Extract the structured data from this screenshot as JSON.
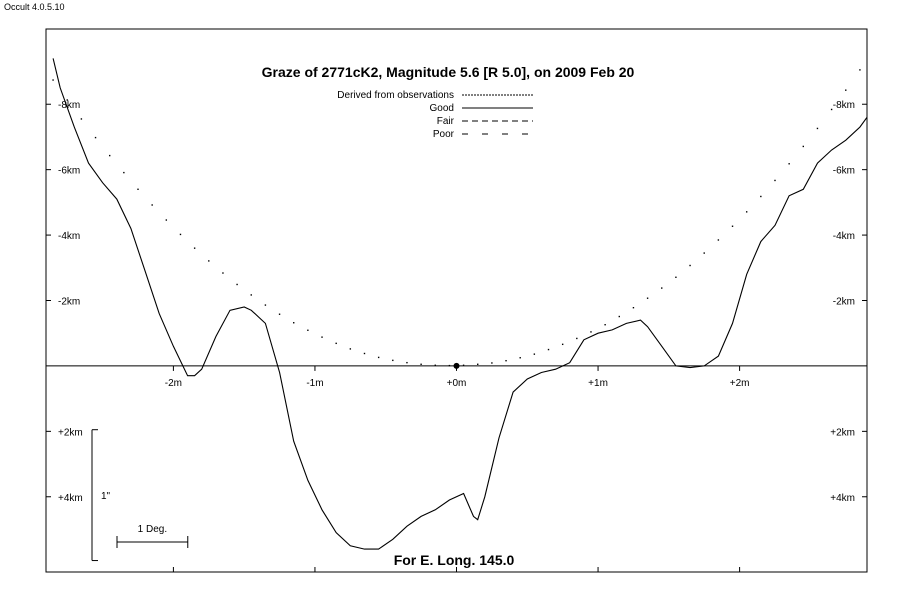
{
  "app_label": "Occult 4.0.5.10",
  "chart_data": {
    "type": "line",
    "title": "Graze of  2771cK2,  Magnitude 5.6 [R 5.0],  on 2009 Feb 20",
    "footer": "For E. Long. 145.0",
    "x_unit": "m",
    "y_unit": "km",
    "xlim": [
      -2.9,
      2.9
    ],
    "ylim": [
      -10.3,
      6.3
    ],
    "x_ticks": [
      {
        "value": -2,
        "label": "-2m"
      },
      {
        "value": -1,
        "label": "-1m"
      },
      {
        "value": 0,
        "label": "+0m"
      },
      {
        "value": 1,
        "label": "+1m"
      },
      {
        "value": 2,
        "label": "+2m"
      }
    ],
    "y_ticks": [
      {
        "value": -8,
        "label": "-8km"
      },
      {
        "value": -6,
        "label": "-6km"
      },
      {
        "value": -4,
        "label": "-4km"
      },
      {
        "value": -2,
        "label": "-2km"
      },
      {
        "value": 2,
        "label": "+2km"
      },
      {
        "value": 4,
        "label": "+4km"
      }
    ],
    "legend": {
      "placement": "top-center",
      "items": [
        {
          "label": "Derived from observations",
          "style": "fine-dash"
        },
        {
          "label": "Good",
          "style": "solid"
        },
        {
          "label": "Fair",
          "style": "dash"
        },
        {
          "label": "Poor",
          "style": "long-gap-dash"
        }
      ]
    },
    "center_marker": {
      "x": 0,
      "y": 0
    },
    "limb_profile": {
      "name": "Good",
      "x": [
        -2.85,
        -2.8,
        -2.7,
        -2.6,
        -2.5,
        -2.4,
        -2.3,
        -2.2,
        -2.1,
        -2.0,
        -1.9,
        -1.85,
        -1.8,
        -1.7,
        -1.6,
        -1.5,
        -1.45,
        -1.35,
        -1.25,
        -1.15,
        -1.05,
        -0.95,
        -0.85,
        -0.75,
        -0.65,
        -0.55,
        -0.45,
        -0.35,
        -0.25,
        -0.15,
        -0.05,
        0.05,
        0.12,
        0.15,
        0.2,
        0.3,
        0.4,
        0.5,
        0.6,
        0.7,
        0.8,
        0.9,
        1.0,
        1.1,
        1.2,
        1.3,
        1.35,
        1.45,
        1.55,
        1.65,
        1.75,
        1.85,
        1.95,
        2.05,
        2.15,
        2.25,
        2.35,
        2.45,
        2.55,
        2.65,
        2.75,
        2.85,
        2.9
      ],
      "y": [
        -9.4,
        -8.5,
        -7.3,
        -6.2,
        -5.6,
        -5.1,
        -4.2,
        -2.9,
        -1.6,
        -0.6,
        0.3,
        0.3,
        0.1,
        -0.9,
        -1.7,
        -1.8,
        -1.7,
        -1.3,
        0.2,
        2.3,
        3.5,
        4.4,
        5.1,
        5.5,
        5.6,
        5.6,
        5.3,
        4.9,
        4.6,
        4.4,
        4.1,
        3.9,
        4.6,
        4.7,
        4.0,
        2.2,
        0.8,
        0.4,
        0.2,
        0.1,
        -0.1,
        -0.8,
        -1.0,
        -1.1,
        -1.3,
        -1.4,
        -1.2,
        -0.6,
        0.0,
        0.05,
        0.0,
        -0.3,
        -1.3,
        -2.8,
        -3.8,
        -4.3,
        -5.2,
        -5.4,
        -6.2,
        -6.6,
        -6.9,
        -7.3,
        -7.6
      ]
    },
    "dotted_curve": {
      "style": "dotted",
      "x": [
        -2.85,
        -2.75,
        -2.65,
        -2.55,
        -2.45,
        -2.35,
        -2.25,
        -2.15,
        -2.05,
        -1.95,
        -1.85,
        -1.75,
        -1.65,
        -1.55,
        -1.45,
        -1.35,
        -1.25,
        -1.15,
        -1.05,
        -0.95,
        -0.85,
        -0.75,
        -0.65,
        -0.55,
        -0.45,
        -0.35,
        -0.25,
        -0.15,
        -0.05,
        0.05,
        0.15,
        0.25,
        0.35,
        0.45,
        0.55,
        0.65,
        0.75,
        0.85,
        0.95,
        1.05,
        1.15,
        1.25,
        1.35,
        1.45,
        1.55,
        1.65,
        1.75,
        1.85,
        1.95,
        2.05,
        2.15,
        2.25,
        2.35,
        2.45,
        2.55,
        2.65,
        2.75,
        2.85
      ],
      "y": [
        -8.74,
        -8.13,
        -7.55,
        -6.98,
        -6.43,
        -5.91,
        -5.4,
        -4.92,
        -4.46,
        -4.02,
        -3.6,
        -3.21,
        -2.84,
        -2.49,
        -2.17,
        -1.86,
        -1.58,
        -1.32,
        -1.09,
        -0.88,
        -0.69,
        -0.52,
        -0.38,
        -0.26,
        -0.17,
        -0.1,
        -0.05,
        -0.02,
        -0.01,
        -0.02,
        -0.05,
        -0.09,
        -0.16,
        -0.25,
        -0.36,
        -0.5,
        -0.66,
        -0.84,
        -1.04,
        -1.26,
        -1.51,
        -1.78,
        -2.07,
        -2.38,
        -2.71,
        -3.07,
        -3.45,
        -3.85,
        -4.27,
        -4.71,
        -5.18,
        -5.67,
        -6.18,
        -6.71,
        -7.26,
        -7.84,
        -8.43,
        -9.05
      ]
    },
    "scale_bars": [
      {
        "label": "1\"",
        "orientation": "vertical",
        "length_km": 4
      },
      {
        "label": "1 Deg.",
        "orientation": "horizontal",
        "length_m": 0.5
      }
    ]
  }
}
